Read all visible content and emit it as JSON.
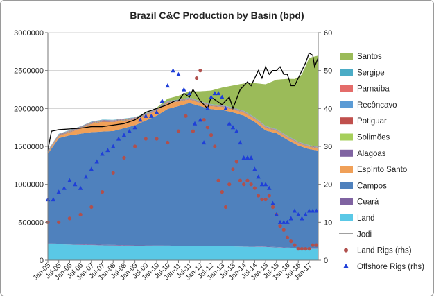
{
  "chart_data": {
    "type": "area",
    "title": "Brazil C&C Production by Basin (bpd)",
    "left_axis": {
      "min": 0,
      "max": 3000000,
      "ticks": [
        "0",
        "500000",
        "1000000",
        "1500000",
        "2000000",
        "2500000",
        "3000000"
      ]
    },
    "right_axis": {
      "min": 0,
      "max": 60,
      "ticks": [
        "0",
        "10",
        "20",
        "30",
        "40",
        "50",
        "60"
      ]
    },
    "x_tick_labels": [
      "Jan-05",
      "Jul-05",
      "Jan-06",
      "Jul-06",
      "Jan-07",
      "Jul-07",
      "Jan-08",
      "Jul-08",
      "Jan-09",
      "Jul-09",
      "Jan-10",
      "Jul-10",
      "Jan-11",
      "Jul-11",
      "Jan-12",
      "Jul-12",
      "Jan-13",
      "Jul-13",
      "Jan-14",
      "Jul-14",
      "Jan-15",
      "Jul-15",
      "Jan-16",
      "Jul-16",
      "Jan-17"
    ],
    "x_start": "2005-01",
    "months": 150,
    "legend_position": "right",
    "legend": [
      "Santos",
      "Sergipe",
      "Parnaíba",
      "Recôncavo",
      "Potiguar",
      "Solimões",
      "Alagoas",
      "Espírito Santo",
      "Campos",
      "Ceará",
      "Land",
      "Jodi",
      "Land Rigs (rhs)",
      "Offshore Rigs (rhs)"
    ],
    "colors": {
      "Santos": "#9bbb59",
      "Sergipe": "#4bacc6",
      "Parnaíba": "#e46c6a",
      "Recôncavo": "#5b9bd5",
      "Potiguar": "#c0504d",
      "Solimões": "#a6cf5b",
      "Alagoas": "#8064a2",
      "Espírito Santo": "#f0a058",
      "Campos": "#4f81bd",
      "Ceará": "#7f63a1",
      "Land": "#5ac8e6",
      "Jodi": "#000000",
      "Land Rigs (rhs)": "#b0504d",
      "Offshore Rigs (rhs)": "#1f3fd8"
    },
    "series": [
      {
        "name": "Land",
        "axis": "left",
        "type": "area",
        "points": [
          [
            0,
            215000
          ],
          [
            24,
            200000
          ],
          [
            48,
            190000
          ],
          [
            72,
            185000
          ],
          [
            96,
            185000
          ],
          [
            120,
            175000
          ],
          [
            144,
            150000
          ],
          [
            149,
            150000
          ]
        ]
      },
      {
        "name": "Ceará",
        "axis": "left",
        "type": "area",
        "points": [
          [
            0,
            8000
          ],
          [
            60,
            7000
          ],
          [
            120,
            5000
          ],
          [
            149,
            4000
          ]
        ]
      },
      {
        "name": "Campos",
        "axis": "left",
        "type": "area",
        "points": [
          [
            0,
            1180000
          ],
          [
            6,
            1390000
          ],
          [
            12,
            1430000
          ],
          [
            24,
            1480000
          ],
          [
            36,
            1500000
          ],
          [
            48,
            1580000
          ],
          [
            60,
            1710000
          ],
          [
            66,
            1800000
          ],
          [
            72,
            1840000
          ],
          [
            78,
            1880000
          ],
          [
            84,
            1840000
          ],
          [
            90,
            1800000
          ],
          [
            96,
            1790000
          ],
          [
            102,
            1760000
          ],
          [
            108,
            1720000
          ],
          [
            114,
            1640000
          ],
          [
            120,
            1530000
          ],
          [
            126,
            1500000
          ],
          [
            132,
            1420000
          ],
          [
            138,
            1350000
          ],
          [
            144,
            1310000
          ],
          [
            149,
            1290000
          ]
        ]
      },
      {
        "name": "Espírito Santo",
        "axis": "left",
        "type": "area",
        "points": [
          [
            0,
            15000
          ],
          [
            12,
            40000
          ],
          [
            18,
            70000
          ],
          [
            24,
            110000
          ],
          [
            30,
            130000
          ],
          [
            36,
            120000
          ],
          [
            42,
            100000
          ],
          [
            48,
            80000
          ],
          [
            54,
            70000
          ],
          [
            60,
            70000
          ],
          [
            66,
            80000
          ],
          [
            72,
            60000
          ],
          [
            78,
            50000
          ],
          [
            84,
            40000
          ],
          [
            90,
            40000
          ],
          [
            96,
            40000
          ],
          [
            108,
            40000
          ],
          [
            120,
            35000
          ],
          [
            132,
            30000
          ],
          [
            149,
            30000
          ]
        ]
      },
      {
        "name": "Alagoas",
        "axis": "left",
        "type": "area",
        "points": [
          [
            0,
            6000
          ],
          [
            149,
            4000
          ]
        ]
      },
      {
        "name": "Solimões",
        "axis": "left",
        "type": "area",
        "points": [
          [
            0,
            4000
          ],
          [
            149,
            3000
          ]
        ]
      },
      {
        "name": "Potiguar",
        "axis": "left",
        "type": "area",
        "points": [
          [
            0,
            5000
          ],
          [
            149,
            4000
          ]
        ]
      },
      {
        "name": "Recôncavo",
        "axis": "left",
        "type": "area",
        "points": [
          [
            0,
            5000
          ],
          [
            149,
            4000
          ]
        ]
      },
      {
        "name": "Parnaíba",
        "axis": "left",
        "type": "area",
        "points": [
          [
            0,
            4000
          ],
          [
            149,
            3000
          ]
        ]
      },
      {
        "name": "Sergipe",
        "axis": "left",
        "type": "area",
        "points": [
          [
            0,
            5000
          ],
          [
            149,
            4000
          ]
        ]
      },
      {
        "name": "Santos",
        "axis": "left",
        "type": "area",
        "points": [
          [
            0,
            0
          ],
          [
            48,
            0
          ],
          [
            60,
            10000
          ],
          [
            66,
            30000
          ],
          [
            72,
            50000
          ],
          [
            78,
            80000
          ],
          [
            84,
            130000
          ],
          [
            90,
            180000
          ],
          [
            96,
            230000
          ],
          [
            102,
            290000
          ],
          [
            108,
            360000
          ],
          [
            114,
            450000
          ],
          [
            120,
            550000
          ],
          [
            126,
            650000
          ],
          [
            132,
            750000
          ],
          [
            136,
            800000
          ],
          [
            140,
            900000
          ],
          [
            144,
            1150000
          ],
          [
            149,
            1200000
          ]
        ]
      },
      {
        "name": "Jodi",
        "axis": "left",
        "type": "line",
        "points": [
          [
            0,
            1450000
          ],
          [
            2,
            1700000
          ],
          [
            6,
            1720000
          ],
          [
            12,
            1730000
          ],
          [
            18,
            1740000
          ],
          [
            24,
            1760000
          ],
          [
            30,
            1760000
          ],
          [
            36,
            1780000
          ],
          [
            42,
            1800000
          ],
          [
            48,
            1850000
          ],
          [
            54,
            1950000
          ],
          [
            60,
            2000000
          ],
          [
            66,
            2050000
          ],
          [
            70,
            2100000
          ],
          [
            72,
            2100000
          ],
          [
            75,
            2200000
          ],
          [
            78,
            2150000
          ],
          [
            80,
            2250000
          ],
          [
            84,
            2100000
          ],
          [
            88,
            2000000
          ],
          [
            90,
            2150000
          ],
          [
            96,
            2050000
          ],
          [
            100,
            2150000
          ],
          [
            102,
            2000000
          ],
          [
            106,
            2250000
          ],
          [
            110,
            2350000
          ],
          [
            112,
            2300000
          ],
          [
            114,
            2400000
          ],
          [
            116,
            2500000
          ],
          [
            118,
            2400000
          ],
          [
            120,
            2550000
          ],
          [
            122,
            2450000
          ],
          [
            124,
            2500000
          ],
          [
            126,
            2500000
          ],
          [
            128,
            2550000
          ],
          [
            130,
            2450000
          ],
          [
            132,
            2450000
          ],
          [
            134,
            2300000
          ],
          [
            136,
            2300000
          ],
          [
            138,
            2400000
          ],
          [
            140,
            2500000
          ],
          [
            142,
            2600000
          ],
          [
            144,
            2730000
          ],
          [
            146,
            2700000
          ],
          [
            147,
            2550000
          ],
          [
            149,
            2670000
          ]
        ]
      },
      {
        "name": "Land Rigs (rhs)",
        "axis": "right",
        "type": "scatter",
        "points": [
          [
            0,
            10
          ],
          [
            6,
            10
          ],
          [
            12,
            11
          ],
          [
            18,
            12
          ],
          [
            24,
            14
          ],
          [
            30,
            18
          ],
          [
            36,
            23
          ],
          [
            42,
            27
          ],
          [
            48,
            30
          ],
          [
            54,
            32
          ],
          [
            60,
            32
          ],
          [
            66,
            31
          ],
          [
            72,
            34
          ],
          [
            76,
            38
          ],
          [
            80,
            34
          ],
          [
            82,
            48
          ],
          [
            84,
            50
          ],
          [
            86,
            37
          ],
          [
            88,
            35
          ],
          [
            90,
            33
          ],
          [
            92,
            30
          ],
          [
            94,
            21
          ],
          [
            96,
            18
          ],
          [
            98,
            14
          ],
          [
            100,
            20
          ],
          [
            102,
            24
          ],
          [
            104,
            26
          ],
          [
            106,
            21
          ],
          [
            108,
            20
          ],
          [
            110,
            21
          ],
          [
            112,
            20
          ],
          [
            114,
            19
          ],
          [
            116,
            17
          ],
          [
            118,
            16
          ],
          [
            120,
            16
          ],
          [
            122,
            17
          ],
          [
            124,
            14
          ],
          [
            126,
            12
          ],
          [
            128,
            9
          ],
          [
            130,
            8
          ],
          [
            132,
            6
          ],
          [
            134,
            5
          ],
          [
            136,
            4
          ],
          [
            138,
            3
          ],
          [
            140,
            3
          ],
          [
            142,
            3
          ],
          [
            144,
            3
          ],
          [
            146,
            4
          ],
          [
            148,
            4
          ]
        ]
      },
      {
        "name": "Offshore Rigs (rhs)",
        "axis": "right",
        "type": "scatter",
        "points": [
          [
            0,
            16
          ],
          [
            3,
            16
          ],
          [
            6,
            18
          ],
          [
            9,
            19
          ],
          [
            12,
            21
          ],
          [
            15,
            20
          ],
          [
            18,
            19
          ],
          [
            21,
            22
          ],
          [
            24,
            24
          ],
          [
            27,
            26
          ],
          [
            30,
            28
          ],
          [
            33,
            29
          ],
          [
            36,
            30
          ],
          [
            39,
            32
          ],
          [
            42,
            33
          ],
          [
            45,
            34
          ],
          [
            48,
            35
          ],
          [
            51,
            37
          ],
          [
            54,
            38
          ],
          [
            57,
            38
          ],
          [
            60,
            39
          ],
          [
            63,
            42
          ],
          [
            66,
            46
          ],
          [
            69,
            50
          ],
          [
            72,
            49
          ],
          [
            75,
            45
          ],
          [
            78,
            44
          ],
          [
            81,
            36
          ],
          [
            84,
            37
          ],
          [
            86,
            31
          ],
          [
            88,
            40
          ],
          [
            90,
            43
          ],
          [
            92,
            44
          ],
          [
            94,
            44
          ],
          [
            96,
            43
          ],
          [
            98,
            40
          ],
          [
            100,
            36
          ],
          [
            102,
            35
          ],
          [
            104,
            34
          ],
          [
            106,
            31
          ],
          [
            108,
            27
          ],
          [
            110,
            27
          ],
          [
            112,
            27
          ],
          [
            114,
            24
          ],
          [
            116,
            22
          ],
          [
            118,
            20
          ],
          [
            120,
            20
          ],
          [
            122,
            19
          ],
          [
            124,
            15
          ],
          [
            126,
            12
          ],
          [
            128,
            10
          ],
          [
            130,
            10
          ],
          [
            132,
            10
          ],
          [
            134,
            11
          ],
          [
            136,
            13
          ],
          [
            138,
            12
          ],
          [
            140,
            11
          ],
          [
            142,
            12
          ],
          [
            144,
            13
          ],
          [
            146,
            13
          ],
          [
            148,
            13
          ]
        ]
      }
    ]
  }
}
